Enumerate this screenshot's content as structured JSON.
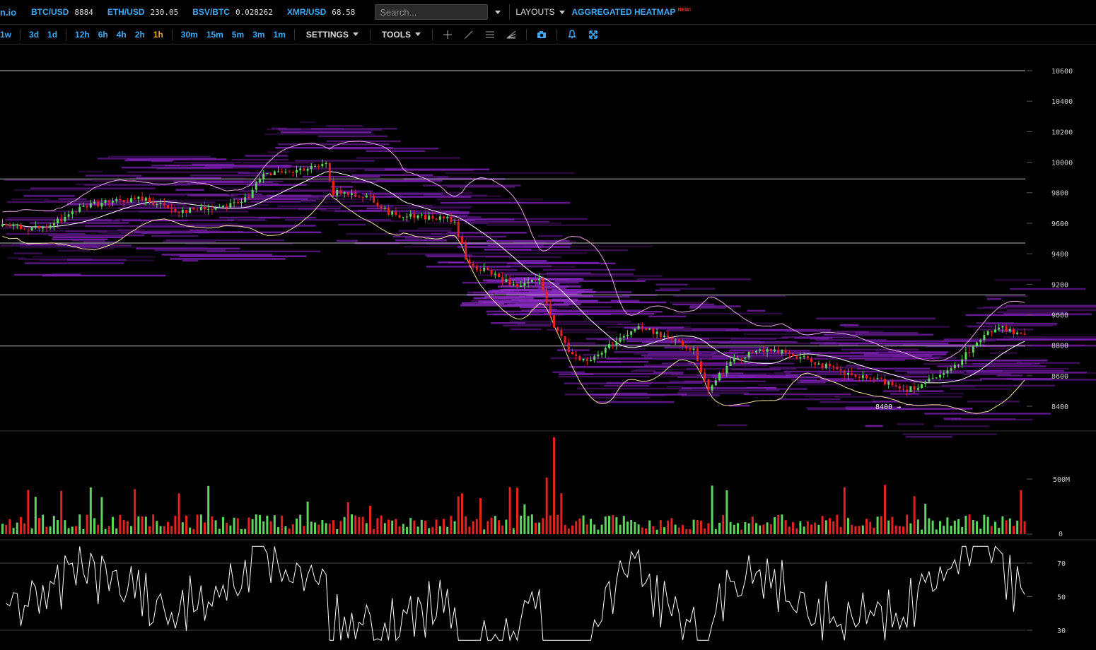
{
  "header": {
    "logo_text": "n.io",
    "tickers": [
      {
        "symbol": "BTC/USD",
        "price": "8884"
      },
      {
        "symbol": "ETH/USD",
        "price": "230.05"
      },
      {
        "symbol": "BSV/BTC",
        "price": "0.028262"
      },
      {
        "symbol": "XMR/USD",
        "price": "68.58"
      }
    ],
    "search_placeholder": "Search...",
    "layouts_label": "LAYOUTS",
    "aggregated_label": "AGGREGATED HEATMAP",
    "new_badge": "NEW!"
  },
  "toolbar": {
    "timeframes": [
      "1w",
      "3d",
      "1d",
      "12h",
      "6h",
      "4h",
      "2h",
      "1h",
      "30m",
      "15m",
      "5m",
      "3m",
      "1m"
    ],
    "active_timeframe": "1h",
    "settings_label": "SETTINGS",
    "tools_label": "TOOLS",
    "tool_icons": [
      "crosshair-icon",
      "trendline-icon",
      "horizontal-lines-icon",
      "fib-fan-icon",
      "camera-icon",
      "bell-icon",
      "fullscreen-icon"
    ]
  },
  "price_axis": {
    "labels": [
      "10600",
      "10400",
      "10200",
      "10000",
      "9800",
      "9600",
      "9400",
      "9200",
      "9000",
      "8800",
      "8600",
      "8400"
    ],
    "min": 8300,
    "max": 10700
  },
  "marker_label": "8400 →",
  "volume_axis": {
    "labels": [
      "500M",
      "0"
    ]
  },
  "rsi_axis": {
    "labels": [
      "70",
      "50",
      "30"
    ]
  },
  "colors": {
    "up": "#5fd35f",
    "down": "#e02424",
    "heat": "#7a1fb0",
    "accent": "#3fa9f5",
    "active": "#f5a623"
  }
}
